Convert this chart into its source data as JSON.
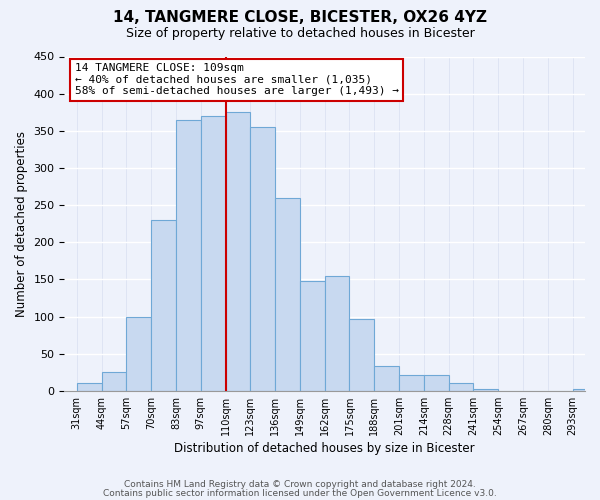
{
  "title": "14, TANGMERE CLOSE, BICESTER, OX26 4YZ",
  "subtitle": "Size of property relative to detached houses in Bicester",
  "xlabel": "Distribution of detached houses by size in Bicester",
  "ylabel": "Number of detached properties",
  "bar_color": "#c8d9f0",
  "bar_edge_color": "#6fa8d6",
  "bin_labels": [
    "31sqm",
    "44sqm",
    "57sqm",
    "70sqm",
    "83sqm",
    "97sqm",
    "110sqm",
    "123sqm",
    "136sqm",
    "149sqm",
    "162sqm",
    "175sqm",
    "188sqm",
    "201sqm",
    "214sqm",
    "228sqm",
    "241sqm",
    "254sqm",
    "267sqm",
    "280sqm",
    "293sqm"
  ],
  "bar_heights": [
    10,
    25,
    100,
    230,
    365,
    370,
    375,
    355,
    260,
    148,
    155,
    96,
    34,
    21,
    21,
    11,
    2,
    0,
    0,
    0,
    2
  ],
  "ylim": [
    0,
    450
  ],
  "yticks": [
    0,
    50,
    100,
    150,
    200,
    250,
    300,
    350,
    400,
    450
  ],
  "property_line_label": "14 TANGMERE CLOSE: 109sqm",
  "annotation_line1": "← 40% of detached houses are smaller (1,035)",
  "annotation_line2": "58% of semi-detached houses are larger (1,493) →",
  "red_line_color": "#cc0000",
  "annotation_box_edge_color": "#cc0000",
  "footer_line1": "Contains HM Land Registry data © Crown copyright and database right 2024.",
  "footer_line2": "Contains public sector information licensed under the Open Government Licence v3.0.",
  "background_color": "#eef2fb",
  "grid_color": "#d0d8ea",
  "property_bin_index": 6
}
